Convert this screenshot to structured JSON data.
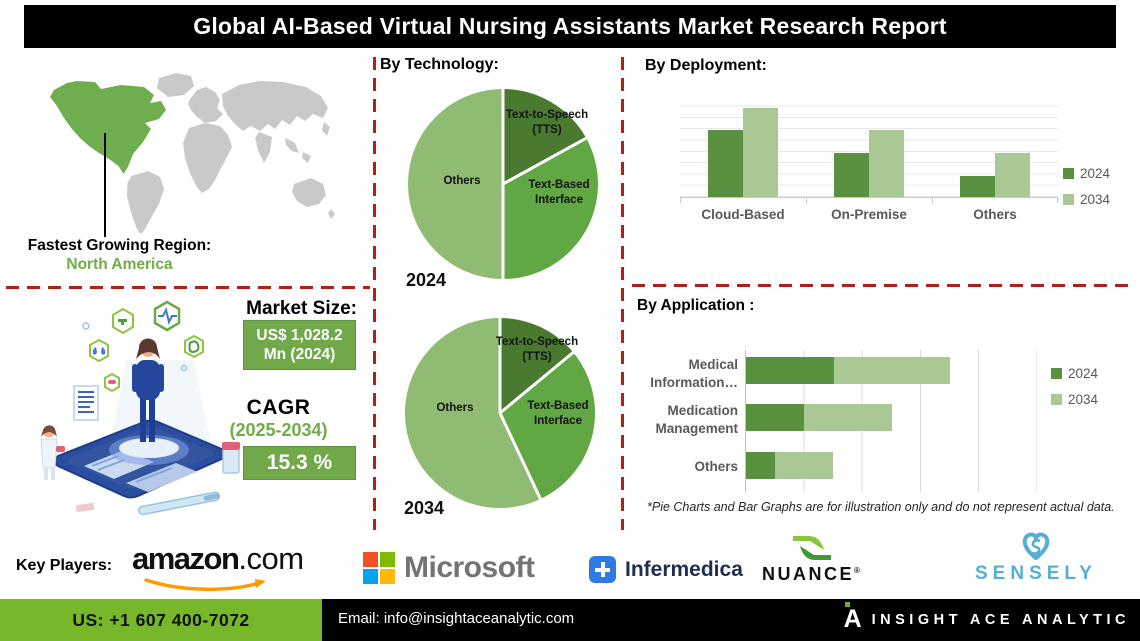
{
  "title": "Global AI-Based Virtual Nursing Assistants Market Research Report",
  "region": {
    "label": "Fastest Growing Region:",
    "value": "North America"
  },
  "market": {
    "size_label": "Market Size:",
    "size_value": "US$ 1,028.2 Mn (2024)",
    "cagr_label": "CAGR",
    "cagr_period": "(2025-2034)",
    "cagr_value": "15.3 %"
  },
  "disclaimer": "*Pie Charts and Bar Graphs are for illustration only and do not represent actual data.",
  "key_players": {
    "label": "Key Players:",
    "amazon_name": "amazon",
    "amazon_suffix": ".com",
    "microsoft_name": "Microsoft",
    "infermedica_name": "Infermedica",
    "nuance_name": "NUANCE",
    "nuance_reg": "®",
    "sensely_name": "SENSELY"
  },
  "footer": {
    "phone": "US: +1 607 400-7072",
    "email": "Email: info@insightaceanalytic.com",
    "brand": "INSIGHT ACE ANALYTIC",
    "brand_initial": "A"
  },
  "colors": {
    "pie_dark": "#4a7a30",
    "pie_mid": "#61a744",
    "pie_light": "#8fbc72",
    "bar_2024": "#5a9140",
    "bar_2034": "#a9c893",
    "dashed_divider": "#b21f15",
    "accent_green": "#70ad47",
    "footer_green": "#76b82a",
    "map_highlight": "#6fae4e",
    "map_base": "#c9c9c9"
  },
  "chart_data": [
    {
      "id": "technology-pie-2024",
      "type": "pie",
      "section_title": "By Technology:",
      "year_label": "2024",
      "labels": [
        "Text-to-Speech (TTS)",
        "Text-Based Interface",
        "Others"
      ],
      "values": [
        17,
        33,
        50
      ],
      "colors": [
        "#4a7a30",
        "#61a744",
        "#8fbc72"
      ]
    },
    {
      "id": "technology-pie-2034",
      "type": "pie",
      "year_label": "2034",
      "labels": [
        "Text-to-Speech (TTS)",
        "Text-Based Interface",
        "Others"
      ],
      "values": [
        14,
        29,
        57
      ],
      "colors": [
        "#4a7a30",
        "#61a744",
        "#8fbc72"
      ]
    },
    {
      "id": "deployment-bar",
      "type": "bar",
      "title": "By Deployment:",
      "categories": [
        "Cloud-Based",
        "On-Premise",
        "Others"
      ],
      "series": [
        {
          "name": "2024",
          "color": "#5a9140",
          "values": [
            66,
            44,
            21
          ]
        },
        {
          "name": "2034",
          "color": "#a9c893",
          "values": [
            88,
            66,
            44
          ]
        }
      ],
      "ylim": [
        0,
        100
      ],
      "grid": true,
      "legend_position": "right"
    },
    {
      "id": "application-bar",
      "type": "stacked-barh",
      "title": "By Application :",
      "categories": [
        "Medical Information…",
        "Medication Management",
        "Others"
      ],
      "series": [
        {
          "name": "2024",
          "color": "#5a9140",
          "values": [
            1.5,
            1.0,
            0.5
          ]
        },
        {
          "name": "2034",
          "color": "#a9c893",
          "values": [
            2.0,
            1.5,
            1.0
          ]
        }
      ],
      "xlim": [
        0,
        5.4
      ],
      "grid": true,
      "legend_position": "right"
    }
  ]
}
